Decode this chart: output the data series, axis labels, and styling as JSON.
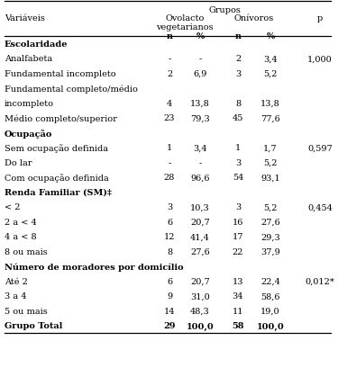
{
  "rows": [
    {
      "label": "Escolaridade",
      "bold": true,
      "indent": false,
      "n1": "",
      "p1": "",
      "n2": "",
      "p2": "",
      "p": ""
    },
    {
      "label": "Analfabeta",
      "bold": false,
      "indent": false,
      "n1": "-",
      "p1": "-",
      "n2": "2",
      "p2": "3,4",
      "p": "1,000"
    },
    {
      "label": "Fundamental incompleto",
      "bold": false,
      "indent": false,
      "n1": "2",
      "p1": "6,9",
      "n2": "3",
      "p2": "5,2",
      "p": ""
    },
    {
      "label": "Fundamental completo/médio",
      "bold": false,
      "indent": false,
      "n1": "",
      "p1": "",
      "n2": "",
      "p2": "",
      "p": ""
    },
    {
      "label": "incompleto",
      "bold": false,
      "indent": false,
      "n1": "4",
      "p1": "13,8",
      "n2": "8",
      "p2": "13,8",
      "p": ""
    },
    {
      "label": "Médio completo/superior",
      "bold": false,
      "indent": false,
      "n1": "23",
      "p1": "79,3",
      "n2": "45",
      "p2": "77,6",
      "p": ""
    },
    {
      "label": "Ocupação",
      "bold": true,
      "indent": false,
      "n1": "",
      "p1": "",
      "n2": "",
      "p2": "",
      "p": ""
    },
    {
      "label": "Sem ocupação definida",
      "bold": false,
      "indent": false,
      "n1": "1",
      "p1": "3,4",
      "n2": "1",
      "p2": "1,7",
      "p": "0,597"
    },
    {
      "label": "Do lar",
      "bold": false,
      "indent": false,
      "n1": "-",
      "p1": "-",
      "n2": "3",
      "p2": "5,2",
      "p": ""
    },
    {
      "label": "Com ocupação definida",
      "bold": false,
      "indent": false,
      "n1": "28",
      "p1": "96,6",
      "n2": "54",
      "p2": "93,1",
      "p": ""
    },
    {
      "label": "Renda Familiar (SM)‡",
      "bold": true,
      "indent": false,
      "n1": "",
      "p1": "",
      "n2": "",
      "p2": "",
      "p": ""
    },
    {
      "label": "< 2",
      "bold": false,
      "indent": false,
      "n1": "3",
      "p1": "10,3",
      "n2": "3",
      "p2": "5,2",
      "p": "0,454"
    },
    {
      "label": "2 a < 4",
      "bold": false,
      "indent": false,
      "n1": "6",
      "p1": "20,7",
      "n2": "16",
      "p2": "27,6",
      "p": ""
    },
    {
      "label": "4 a < 8",
      "bold": false,
      "indent": false,
      "n1": "12",
      "p1": "41,4",
      "n2": "17",
      "p2": "29,3",
      "p": ""
    },
    {
      "label": "8 ou mais",
      "bold": false,
      "indent": false,
      "n1": "8",
      "p1": "27,6",
      "n2": "22",
      "p2": "37,9",
      "p": ""
    },
    {
      "label": "Número de moradores por domicílio",
      "bold": true,
      "indent": false,
      "n1": "",
      "p1": "",
      "n2": "",
      "p2": "",
      "p": ""
    },
    {
      "label": "Até 2",
      "bold": false,
      "indent": false,
      "n1": "6",
      "p1": "20,7",
      "n2": "13",
      "p2": "22,4",
      "p": "0,012*"
    },
    {
      "label": "3 a 4",
      "bold": false,
      "indent": false,
      "n1": "9",
      "p1": "31,0",
      "n2": "34",
      "p2": "58,6",
      "p": ""
    },
    {
      "label": "5 ou mais",
      "bold": false,
      "indent": false,
      "n1": "14",
      "p1": "48,3",
      "n2": "11",
      "p2": "19,0",
      "p": ""
    },
    {
      "label": "Grupo Total",
      "bold": true,
      "indent": false,
      "n1": "29",
      "p1": "100,0",
      "n2": "58",
      "p2": "100,0",
      "p": ""
    }
  ],
  "bg_color": "#ffffff",
  "text_color": "#000000",
  "line_color": "#000000",
  "font_size": 7.0,
  "fig_width": 3.75,
  "fig_height": 4.1,
  "dpi": 100
}
